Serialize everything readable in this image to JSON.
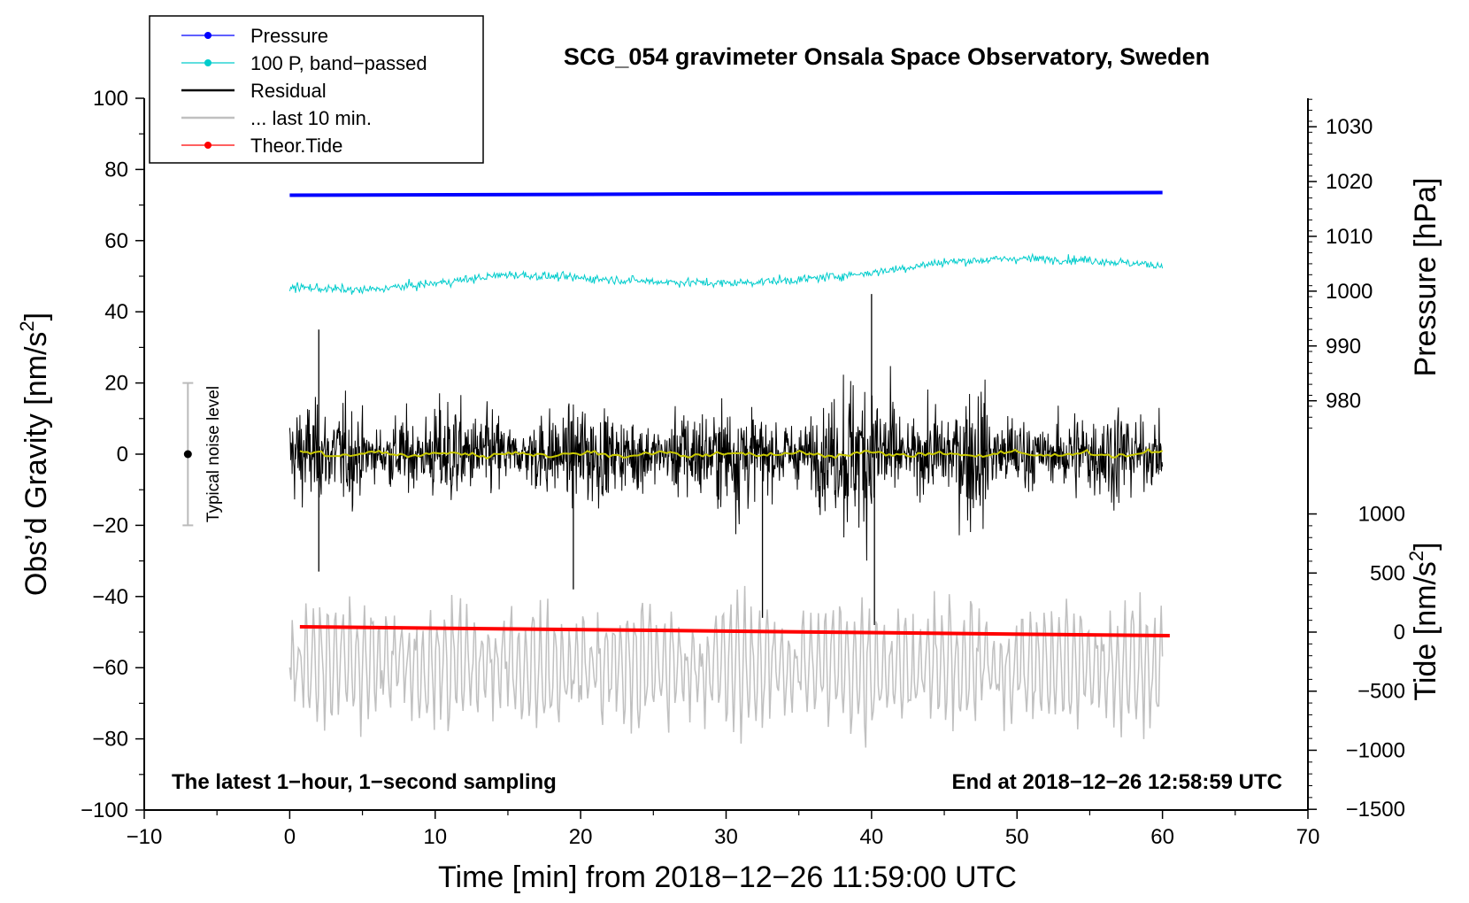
{
  "chart_data": {
    "type": "line",
    "title": "SCG_054 gravimeter Onsala Space Observatory, Sweden",
    "xlabel": "Time [min] from 2018−12−26 11:59:00 UTC",
    "ylabel_left_main": "Obs’d Gravity [nm/s",
    "ylabel_left_sup": "2",
    "ylabel_left_end": "]",
    "ylabel_right_pressure": "Pressure [hPa]",
    "ylabel_right_tide_main": "Tide [nm/s",
    "ylabel_right_tide_sup": "2",
    "ylabel_right_tide_end": "]",
    "xlim": [
      -10,
      70
    ],
    "ylim": [
      -100,
      100
    ],
    "x_ticks": [
      -10,
      0,
      10,
      20,
      30,
      40,
      50,
      60,
      70
    ],
    "x_tick_labels": [
      "−10",
      "0",
      "10",
      "20",
      "30",
      "40",
      "50",
      "60",
      "70"
    ],
    "y_ticks": [
      -100,
      -80,
      -60,
      -40,
      -20,
      0,
      20,
      40,
      60,
      80,
      100
    ],
    "y_tick_labels": [
      "−100",
      "−80",
      "−60",
      "−40",
      "−20",
      "0",
      "20",
      "40",
      "60",
      "80",
      "100"
    ],
    "pressure_axis": {
      "ticks": [
        980,
        990,
        1000,
        1010,
        1020,
        1030
      ],
      "tick_labels": [
        "980",
        "990",
        "1000",
        "1010",
        "1020",
        "1030"
      ],
      "gravity_equivalent": {
        "at_980": 15,
        "per_10hPa": 15.4
      }
    },
    "tide_axis": {
      "ticks": [
        -1500,
        -1000,
        -500,
        0,
        500,
        1000
      ],
      "tick_labels": [
        "−1500",
        "−1000",
        "−500",
        "0",
        "500",
        "1000"
      ],
      "gravity_equivalent": {
        "at_0": -50,
        "per_500": 16.6
      }
    },
    "series": [
      {
        "name": "Pressure",
        "color": "#0000ff",
        "x_range": [
          0,
          60
        ],
        "hPa_start": 1017.5,
        "hPa_end": 1018.0
      },
      {
        "name": "100 P, band−passed",
        "color": "#00cccc",
        "x_range": [
          0,
          60
        ],
        "x": [
          0,
          5,
          10,
          15,
          20,
          25,
          30,
          35,
          40,
          45,
          50,
          55,
          60
        ],
        "y": [
          47,
          46,
          48,
          50.5,
          49.5,
          48.5,
          48,
          49,
          51,
          54,
          55,
          54.5,
          53
        ]
      },
      {
        "name": "Residual",
        "color": "#000000",
        "x_range": [
          0,
          60
        ],
        "typical_amplitude": 10,
        "spikes": [
          [
            2,
            35
          ],
          [
            2,
            -33
          ],
          [
            19.5,
            -38
          ],
          [
            32.5,
            -46
          ],
          [
            40,
            45
          ],
          [
            40.2,
            -48
          ]
        ]
      },
      {
        "name": "... last 10 min.",
        "color": "#c0c0c0",
        "x_range": [
          0,
          60
        ],
        "y_range": [
          -88,
          -37
        ]
      },
      {
        "name": "Theor.Tide",
        "color": "#ff0000",
        "x_range": [
          0.7,
          60.5
        ],
        "y_start": -48.5,
        "y_end": -51
      }
    ],
    "mean_line": {
      "color": "#c8c800",
      "y": 0
    },
    "noise_bar": {
      "x": -7,
      "y": 0,
      "low": -20,
      "high": 20,
      "label": "Typical noise level"
    },
    "annotations": {
      "bottom_left": "The latest 1−hour, 1−second sampling",
      "bottom_right": "End at 2018−12−26 12:58:59 UTC"
    },
    "legend": {
      "placement": "top-left",
      "entries": [
        {
          "label": "Pressure",
          "color": "#0000ff",
          "marker": true
        },
        {
          "label": "100 P, band−passed",
          "color": "#00cccc",
          "marker": true
        },
        {
          "label": "Residual",
          "color": "#000000",
          "marker": false
        },
        {
          "label": "... last 10 min.",
          "color": "#c0c0c0",
          "marker": false
        },
        {
          "label": "Theor.Tide",
          "color": "#ff0000",
          "marker": true
        }
      ]
    }
  }
}
